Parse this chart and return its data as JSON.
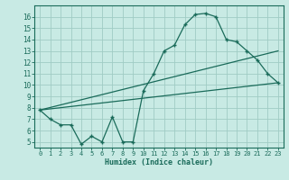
{
  "bg_color": "#c8eae4",
  "line_color": "#1a6b5a",
  "grid_color": "#a0ccc4",
  "xlabel": "Humidex (Indice chaleur)",
  "xlim": [
    -0.5,
    23.5
  ],
  "ylim": [
    4.5,
    17.0
  ],
  "yticks": [
    5,
    6,
    7,
    8,
    9,
    10,
    11,
    12,
    13,
    14,
    15,
    16
  ],
  "xticks": [
    0,
    1,
    2,
    3,
    4,
    5,
    6,
    7,
    8,
    9,
    10,
    11,
    12,
    13,
    14,
    15,
    16,
    17,
    18,
    19,
    20,
    21,
    22,
    23
  ],
  "line1_x": [
    0,
    1,
    2,
    3,
    4,
    5,
    6,
    7,
    8,
    9,
    10,
    11,
    12,
    13,
    14,
    15,
    16,
    17,
    18,
    19,
    20,
    21,
    22,
    23
  ],
  "line1_y": [
    7.8,
    7.0,
    6.5,
    6.5,
    4.8,
    5.5,
    5.0,
    7.2,
    5.0,
    5.0,
    9.5,
    11.0,
    13.0,
    13.5,
    15.3,
    16.2,
    16.3,
    16.0,
    14.0,
    13.8,
    13.0,
    12.2,
    11.0,
    10.2
  ],
  "line2_x": [
    0,
    23
  ],
  "line2_y": [
    7.8,
    10.2
  ],
  "line3_x": [
    0,
    23
  ],
  "line3_y": [
    7.8,
    13.0
  ]
}
